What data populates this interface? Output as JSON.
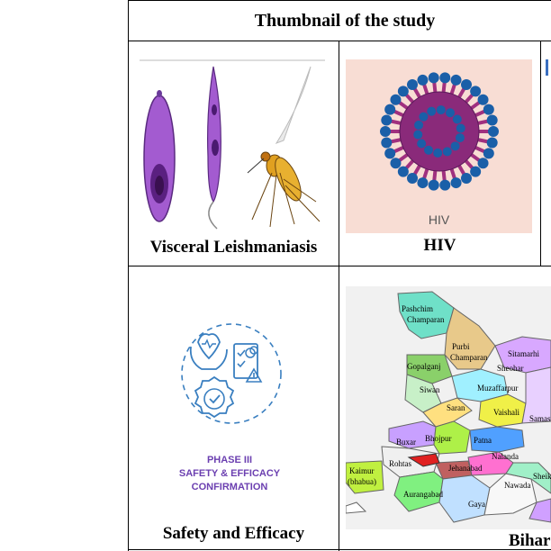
{
  "table": {
    "header": "Thumbnail of the study",
    "cells": {
      "vl": {
        "caption": "Visceral Leishmaniasis"
      },
      "hiv": {
        "caption": "HIV",
        "image_label": "HIV"
      },
      "safety": {
        "caption": "Safety and Efficacy",
        "image_text": [
          "PHASE III",
          "SAFETY & EFFICACY",
          "CONFIRMATION"
        ]
      },
      "bihar": {
        "caption": "Bihar"
      }
    }
  },
  "map_labels": [
    "Pashchim Champaran",
    "Purbi Champaran",
    "Sitamarhi",
    "Gopalganj",
    "Sheohar",
    "Siwan",
    "Muzaffarpur",
    "Saran",
    "Vaishali",
    "Samastipur",
    "Buxar",
    "Bhojpur",
    "Patna",
    "Nalanda",
    "Kaimur (bhabua)",
    "Rohtas",
    "Jehanabad",
    "Sheikhpura",
    "Aurangabad",
    "Gaya",
    "Nawada"
  ],
  "colors": {
    "purple": "#9b59c7",
    "hiv_bg": "#f8ddd4",
    "hiv_body": "#8a2a7a",
    "spike": "#1a5fa8",
    "mosquito": "#e0a020",
    "phase_text": "#6b3fb0",
    "line_art": "#3a7fc0"
  }
}
